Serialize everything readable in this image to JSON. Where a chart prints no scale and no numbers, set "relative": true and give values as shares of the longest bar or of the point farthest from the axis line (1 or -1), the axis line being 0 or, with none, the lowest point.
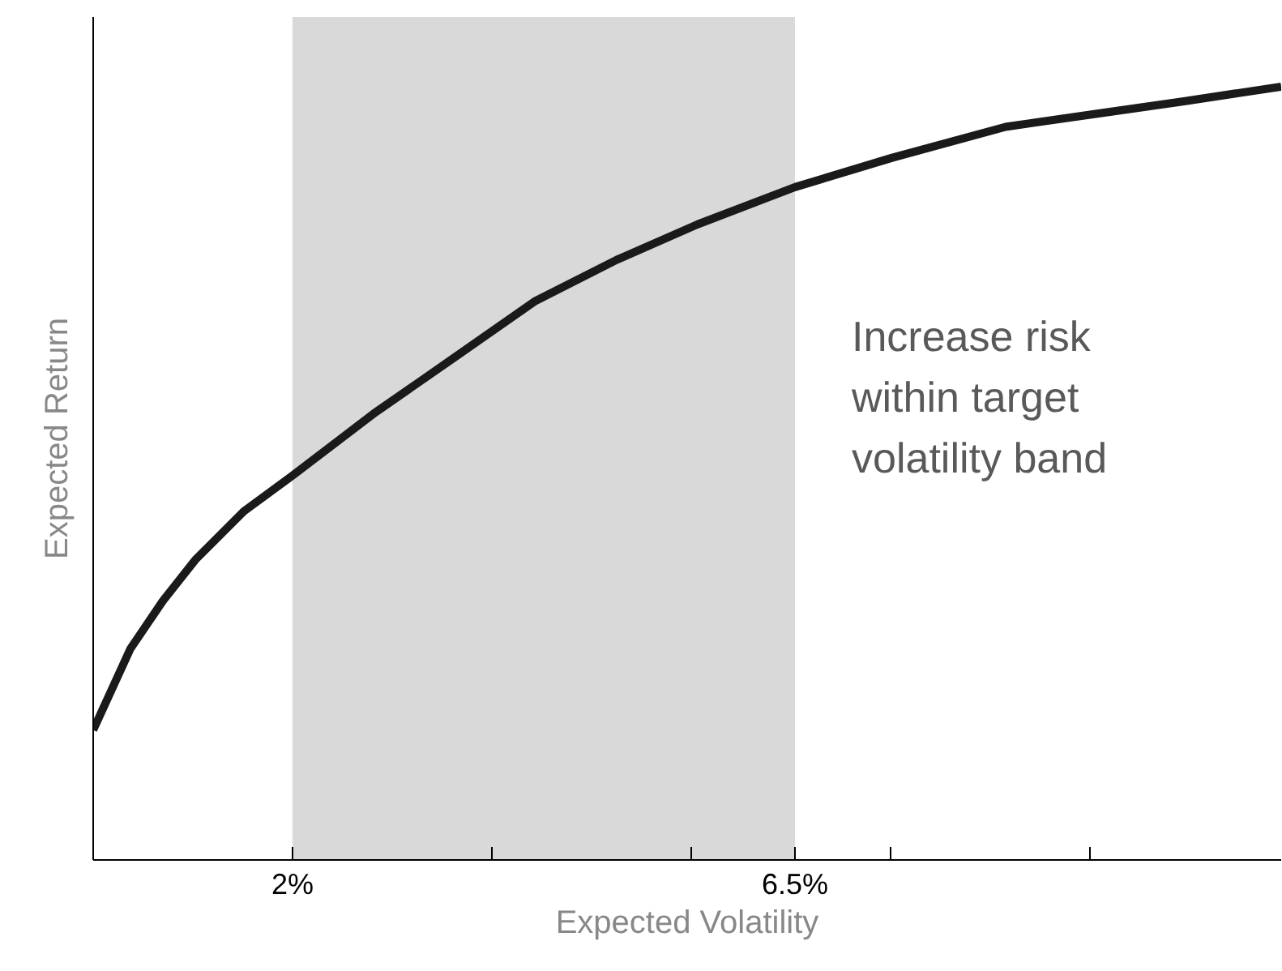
{
  "chart_data": {
    "type": "line",
    "xlabel": "Expected Volatility",
    "ylabel": "Expected Return",
    "relative": true,
    "xlim": [
      0.215,
      10.855
    ],
    "xticks": [
      {
        "value": 0.215,
        "label": null
      },
      {
        "value": 2,
        "label": "2%"
      },
      {
        "value": 3.785,
        "label": null
      },
      {
        "value": 5.57,
        "label": null
      },
      {
        "value": 6.5,
        "label": "6.5%"
      },
      {
        "value": 7.355,
        "label": null
      },
      {
        "value": 9.14,
        "label": null
      }
    ],
    "series": [
      {
        "color": "#1a1a1a",
        "x": [
          0.215,
          0.548,
          0.839,
          1.129,
          1.565,
          2,
          2.726,
          3.452,
          4.177,
          4.903,
          5.629,
          6.5,
          7.371,
          8.387,
          9.156,
          9.984,
          10.855
        ],
        "values": [
          0.168,
          0.273,
          0.335,
          0.388,
          0.451,
          0.497,
          0.577,
          0.65,
          0.723,
          0.776,
          0.822,
          0.87,
          0.908,
          0.948,
          0.964,
          0.981,
          1
        ]
      }
    ],
    "bands": [
      {
        "axis": "x",
        "from": 2,
        "to": 6.5,
        "color": "#d9d9d9"
      }
    ],
    "annotations": [
      "Increase risk\nwithin target\nvolatility band"
    ],
    "grid": false,
    "marker": "none",
    "line_style": "solid"
  }
}
